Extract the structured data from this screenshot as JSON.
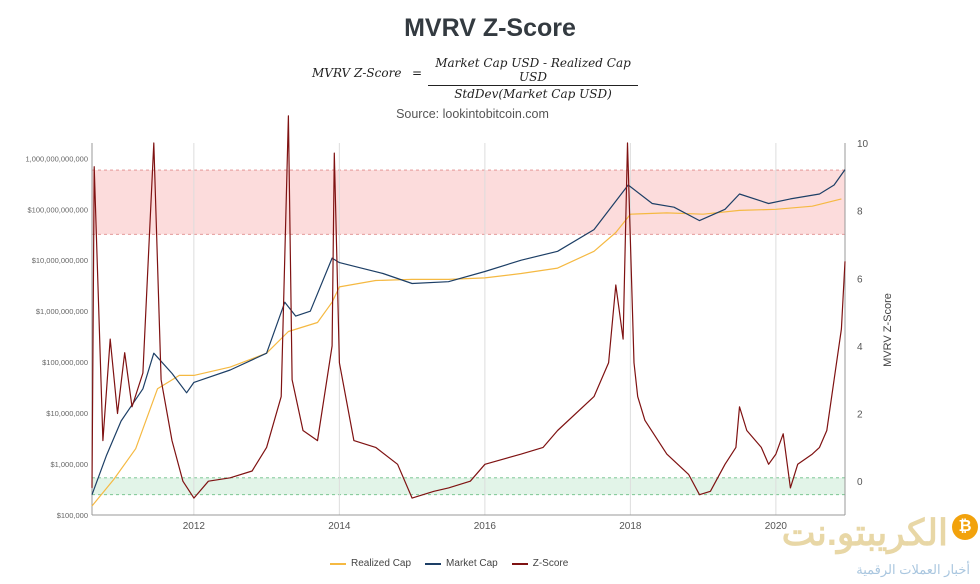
{
  "header": {
    "title": "MVRV Z-Score",
    "formula_lhs": "MVRV Z-Score",
    "formula_eq": "=",
    "formula_num": "Market Cap USD - Realized Cap USD",
    "formula_den": "StdDev(Market Cap USD)",
    "source": "Source: lookintobitcoin.com"
  },
  "watermark": {
    "brand": "الكريبتو.نت",
    "subtitle": "أخبار العملات الرقمية",
    "coin": "₿"
  },
  "colors": {
    "realized": "#f5b942",
    "market": "#1d3f66",
    "zscore": "#7f1212",
    "topband": "#fbd6d6",
    "bottomband": "#dff3e6"
  },
  "chart_data": {
    "type": "line",
    "title": "MVRV Z-Score",
    "xlabel": "",
    "ylabel_left": "",
    "ylabel_right": "MVRV Z-Score",
    "x_ticks": [
      "2012",
      "2014",
      "2016",
      "2018",
      "2020"
    ],
    "x_range": [
      2010.6,
      2020.95
    ],
    "y_left_log_range": [
      100000,
      2000000000000
    ],
    "y_left_ticks": [
      "$100,000",
      "$1,000,000",
      "$10,000,000",
      "$100,000,000",
      "$1,000,000,000",
      "$10,000,000,000",
      "$100,000,000,000",
      "1,000,000,000,000"
    ],
    "y_right_range": [
      -1,
      10
    ],
    "y_right_ticks": [
      "0",
      "2",
      "4",
      "6",
      "8",
      "10"
    ],
    "bands": {
      "top_zone_zscore": [
        7.3,
        9.2
      ],
      "bottom_zone_zscore": [
        -0.4,
        0.1
      ]
    },
    "legend": [
      "Realized Cap",
      "Market Cap",
      "Z-Score"
    ],
    "series": [
      {
        "name": "Realized Cap",
        "axis": "left",
        "points": [
          [
            2010.6,
            150000
          ],
          [
            2010.9,
            500000
          ],
          [
            2011.2,
            2000000
          ],
          [
            2011.5,
            30000000
          ],
          [
            2011.8,
            55000000
          ],
          [
            2012.0,
            55000000
          ],
          [
            2012.5,
            80000000
          ],
          [
            2013.0,
            150000000
          ],
          [
            2013.3,
            400000000
          ],
          [
            2013.7,
            600000000
          ],
          [
            2013.9,
            1500000000
          ],
          [
            2014.0,
            3000000000
          ],
          [
            2014.5,
            4000000000
          ],
          [
            2015.0,
            4200000000
          ],
          [
            2015.5,
            4200000000
          ],
          [
            2016.0,
            4500000000
          ],
          [
            2016.5,
            5500000000
          ],
          [
            2017.0,
            7000000000
          ],
          [
            2017.5,
            15000000000
          ],
          [
            2017.8,
            35000000000
          ],
          [
            2018.0,
            80000000000
          ],
          [
            2018.5,
            85000000000
          ],
          [
            2019.0,
            80000000000
          ],
          [
            2019.5,
            95000000000
          ],
          [
            2020.0,
            100000000000
          ],
          [
            2020.5,
            115000000000
          ],
          [
            2020.9,
            160000000000
          ]
        ]
      },
      {
        "name": "Market Cap",
        "axis": "left",
        "points": [
          [
            2010.6,
            250000
          ],
          [
            2010.8,
            1500000
          ],
          [
            2011.0,
            7000000
          ],
          [
            2011.3,
            30000000
          ],
          [
            2011.45,
            150000000
          ],
          [
            2011.7,
            60000000
          ],
          [
            2011.9,
            25000000
          ],
          [
            2012.0,
            40000000
          ],
          [
            2012.5,
            70000000
          ],
          [
            2013.0,
            150000000
          ],
          [
            2013.25,
            1500000000
          ],
          [
            2013.4,
            800000000
          ],
          [
            2013.6,
            1000000000
          ],
          [
            2013.9,
            11000000000
          ],
          [
            2014.0,
            9000000000
          ],
          [
            2014.3,
            7000000000
          ],
          [
            2014.6,
            5500000000
          ],
          [
            2015.0,
            3500000000
          ],
          [
            2015.5,
            3800000000
          ],
          [
            2016.0,
            6000000000
          ],
          [
            2016.5,
            10000000000
          ],
          [
            2017.0,
            15000000000
          ],
          [
            2017.5,
            40000000000
          ],
          [
            2017.97,
            300000000000
          ],
          [
            2018.3,
            130000000000
          ],
          [
            2018.6,
            110000000000
          ],
          [
            2018.95,
            60000000000
          ],
          [
            2019.3,
            100000000000
          ],
          [
            2019.5,
            200000000000
          ],
          [
            2019.9,
            130000000000
          ],
          [
            2020.2,
            160000000000
          ],
          [
            2020.6,
            200000000000
          ],
          [
            2020.8,
            300000000000
          ],
          [
            2020.95,
            600000000000
          ]
        ]
      },
      {
        "name": "Z-Score",
        "axis": "right",
        "points": [
          [
            2010.6,
            -0.2
          ],
          [
            2010.63,
            9.3
          ],
          [
            2010.75,
            1.2
          ],
          [
            2010.85,
            4.2
          ],
          [
            2010.95,
            2.0
          ],
          [
            2011.05,
            3.8
          ],
          [
            2011.15,
            2.2
          ],
          [
            2011.3,
            3.2
          ],
          [
            2011.45,
            10.0
          ],
          [
            2011.55,
            3.0
          ],
          [
            2011.7,
            1.2
          ],
          [
            2011.85,
            0.0
          ],
          [
            2012.0,
            -0.5
          ],
          [
            2012.2,
            0.0
          ],
          [
            2012.5,
            0.1
          ],
          [
            2012.8,
            0.3
          ],
          [
            2013.0,
            1.0
          ],
          [
            2013.2,
            2.5
          ],
          [
            2013.3,
            10.8
          ],
          [
            2013.35,
            3.0
          ],
          [
            2013.5,
            1.5
          ],
          [
            2013.7,
            1.2
          ],
          [
            2013.9,
            4.0
          ],
          [
            2013.93,
            9.7
          ],
          [
            2014.0,
            3.5
          ],
          [
            2014.2,
            1.2
          ],
          [
            2014.5,
            1.0
          ],
          [
            2014.8,
            0.5
          ],
          [
            2015.0,
            -0.5
          ],
          [
            2015.3,
            -0.3
          ],
          [
            2015.5,
            -0.2
          ],
          [
            2015.8,
            0.0
          ],
          [
            2016.0,
            0.5
          ],
          [
            2016.5,
            0.8
          ],
          [
            2016.8,
            1.0
          ],
          [
            2017.0,
            1.5
          ],
          [
            2017.5,
            2.5
          ],
          [
            2017.7,
            3.5
          ],
          [
            2017.8,
            5.8
          ],
          [
            2017.9,
            4.2
          ],
          [
            2017.96,
            10.0
          ],
          [
            2018.05,
            3.5
          ],
          [
            2018.1,
            2.5
          ],
          [
            2018.2,
            1.8
          ],
          [
            2018.5,
            0.8
          ],
          [
            2018.8,
            0.2
          ],
          [
            2018.95,
            -0.4
          ],
          [
            2019.1,
            -0.3
          ],
          [
            2019.3,
            0.5
          ],
          [
            2019.45,
            1.0
          ],
          [
            2019.5,
            2.2
          ],
          [
            2019.6,
            1.5
          ],
          [
            2019.8,
            1.0
          ],
          [
            2019.9,
            0.5
          ],
          [
            2020.0,
            0.8
          ],
          [
            2020.1,
            1.4
          ],
          [
            2020.2,
            -0.2
          ],
          [
            2020.3,
            0.5
          ],
          [
            2020.5,
            0.8
          ],
          [
            2020.6,
            1.0
          ],
          [
            2020.7,
            1.5
          ],
          [
            2020.8,
            3.0
          ],
          [
            2020.9,
            4.5
          ],
          [
            2020.95,
            6.5
          ]
        ]
      }
    ]
  }
}
